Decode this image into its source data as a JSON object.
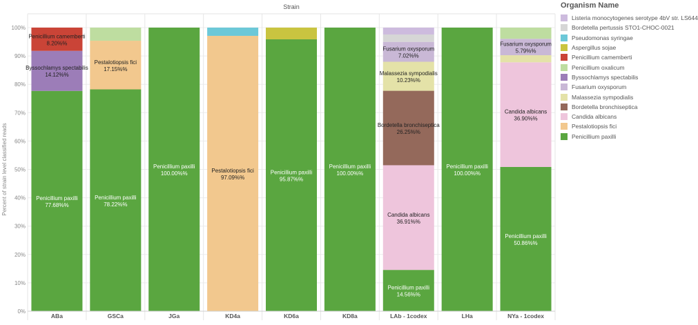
{
  "chart_data": {
    "type": "bar",
    "stacked": true,
    "title": "Strain",
    "ylabel": "Percent of strain level classified reads",
    "xlabel": "",
    "ylim": [
      0,
      100
    ],
    "yticks": [
      0,
      10,
      20,
      30,
      40,
      50,
      60,
      70,
      80,
      90,
      100
    ],
    "ytick_suffix": "%",
    "categories": [
      "ABa",
      "GSCa",
      "JGa",
      "KD4a",
      "KD6a",
      "KD8a",
      "LAb - 1codex",
      "LHa",
      "NYa - 1codex"
    ],
    "legend_title": "Organism Name",
    "legend_position": "right",
    "series": [
      {
        "name": "Penicillium paxilli",
        "color": "#5aa640",
        "label_color": "#ffffff",
        "values": [
          77.68,
          78.22,
          100.0,
          0,
          95.87,
          100.0,
          14.56,
          100.0,
          50.86
        ]
      },
      {
        "name": "Pestalotiopsis fici",
        "color": "#f2c88e",
        "label_color": "#222222",
        "values": [
          0,
          17.15,
          0,
          97.09,
          0,
          0,
          0,
          0,
          0
        ]
      },
      {
        "name": "Candida albicans",
        "color": "#eec5dc",
        "label_color": "#222222",
        "values": [
          0,
          0,
          0,
          0,
          0,
          0,
          36.91,
          0,
          36.9
        ]
      },
      {
        "name": "Bordetella bronchiseptica",
        "color": "#94695b",
        "label_color": "#222222",
        "values": [
          0,
          0,
          0,
          0,
          0,
          0,
          26.25,
          0,
          0
        ]
      },
      {
        "name": "Malassezia sympodialis",
        "color": "#e4e2a8",
        "label_color": "#222222",
        "values": [
          0,
          0,
          0,
          0,
          0,
          0,
          10.23,
          0,
          2.5
        ]
      },
      {
        "name": "Fusarium oxysporum",
        "color": "#c9b8d6",
        "label_color": "#222222",
        "values": [
          0,
          0,
          0,
          0,
          0,
          0,
          7.02,
          0,
          5.79
        ]
      },
      {
        "name": "Byssochlamys spectabilis",
        "color": "#9c7db8",
        "label_color": "#222222",
        "values": [
          14.12,
          0,
          0,
          0,
          0,
          0,
          0,
          0,
          0
        ]
      },
      {
        "name": "Penicillium oxalicum",
        "color": "#bedda0",
        "label_color": "#222222",
        "values": [
          0,
          4.63,
          0,
          0,
          0,
          0,
          0,
          0,
          3.95
        ]
      },
      {
        "name": "Penicillium camemberti",
        "color": "#ca4437",
        "label_color": "#222222",
        "values": [
          8.2,
          0,
          0,
          0,
          0,
          0,
          0,
          0,
          0
        ]
      },
      {
        "name": "Aspergillus sojae",
        "color": "#c9c440",
        "label_color": "#222222",
        "values": [
          0,
          0,
          0,
          0,
          4.13,
          0,
          0,
          0,
          0
        ]
      },
      {
        "name": "Pseudomonas syringae",
        "color": "#6cc8d8",
        "label_color": "#222222",
        "values": [
          0,
          0,
          0,
          2.91,
          0,
          0,
          0,
          0,
          0
        ]
      },
      {
        "name": "Bordetella pertussis STO1-CHOC-0021",
        "color": "#d6d6d6",
        "label_color": "#222222",
        "values": [
          0,
          0,
          0,
          0,
          0,
          0,
          2.6,
          0,
          0
        ]
      },
      {
        "name": "Listeria monocytogenes serotype 4bV str. LS644",
        "color": "#cdbbde",
        "label_color": "#222222",
        "values": [
          0,
          0,
          0,
          0,
          0,
          0,
          2.43,
          0,
          0
        ]
      }
    ],
    "legend_order": [
      "Listeria monocytogenes serotype 4bV str. LS644",
      "Bordetella pertussis STO1-CHOC-0021",
      "Pseudomonas syringae",
      "Aspergillus sojae",
      "Penicillium camemberti",
      "Penicillium oxalicum",
      "Byssochlamys spectabilis",
      "Fusarium oxysporum",
      "Malassezia sympodialis",
      "Bordetella bronchiseptica",
      "Candida albicans",
      "Pestalotiopsis fici",
      "Penicillium paxilli"
    ],
    "segment_labels": [
      {
        "category": "ABa",
        "organism": "Penicillium camemberti",
        "name": "Penicillium camemberti",
        "value": "8.20%%"
      },
      {
        "category": "ABa",
        "organism": "Byssochlamys spectabilis",
        "name": "Byssochlamys spectabilis",
        "value": "14.12%%"
      },
      {
        "category": "ABa",
        "organism": "Penicillium paxilli",
        "name": "Penicillium paxilli",
        "value": "77.68%%"
      },
      {
        "category": "GSCa",
        "organism": "Pestalotiopsis fici",
        "name": "Pestalotiopsis fici",
        "value": "17.15%%"
      },
      {
        "category": "GSCa",
        "organism": "Penicillium paxilli",
        "name": "Penicillium paxilli",
        "value": "78.22%%"
      },
      {
        "category": "JGa",
        "organism": "Penicillium paxilli",
        "name": "Penicillium paxilli",
        "value": "100.00%%"
      },
      {
        "category": "KD4a",
        "organism": "Pestalotiopsis fici",
        "name": "Pestalotiopsis fici",
        "value": "97.09%%"
      },
      {
        "category": "KD6a",
        "organism": "Penicillium paxilli",
        "name": "Penicillium paxilli",
        "value": "95.87%%"
      },
      {
        "category": "KD8a",
        "organism": "Penicillium paxilli",
        "name": "Penicillium paxilli",
        "value": "100.00%%"
      },
      {
        "category": "LAb - 1codex",
        "organism": "Fusarium oxysporum",
        "name": "Fusarium oxysporum",
        "value": "7.02%%"
      },
      {
        "category": "LAb - 1codex",
        "organism": "Malassezia sympodialis",
        "name": "Malassezia sympodialis",
        "value": "10.23%%"
      },
      {
        "category": "LAb - 1codex",
        "organism": "Bordetella bronchiseptica",
        "name": "Bordetella bronchiseptica",
        "value": "26.25%%"
      },
      {
        "category": "LAb - 1codex",
        "organism": "Candida albicans",
        "name": "Candida albicans",
        "value": "36.91%%"
      },
      {
        "category": "LAb - 1codex",
        "organism": "Penicillium paxilli",
        "name": "Penicillium paxilli",
        "value": "14.56%%"
      },
      {
        "category": "LHa",
        "organism": "Penicillium paxilli",
        "name": "Penicillium paxilli",
        "value": "100.00%%"
      },
      {
        "category": "NYa - 1codex",
        "organism": "Fusarium oxysporum",
        "name": "Fusarium oxysporum",
        "value": "5.79%%"
      },
      {
        "category": "NYa - 1codex",
        "organism": "Candida albicans",
        "name": "Candida albicans",
        "value": "36.90%%"
      },
      {
        "category": "NYa - 1codex",
        "organism": "Penicillium paxilli",
        "name": "Penicillium paxilli",
        "value": "50.86%%"
      }
    ],
    "grid": {
      "horizontal": true,
      "vertical_separators": true
    }
  }
}
